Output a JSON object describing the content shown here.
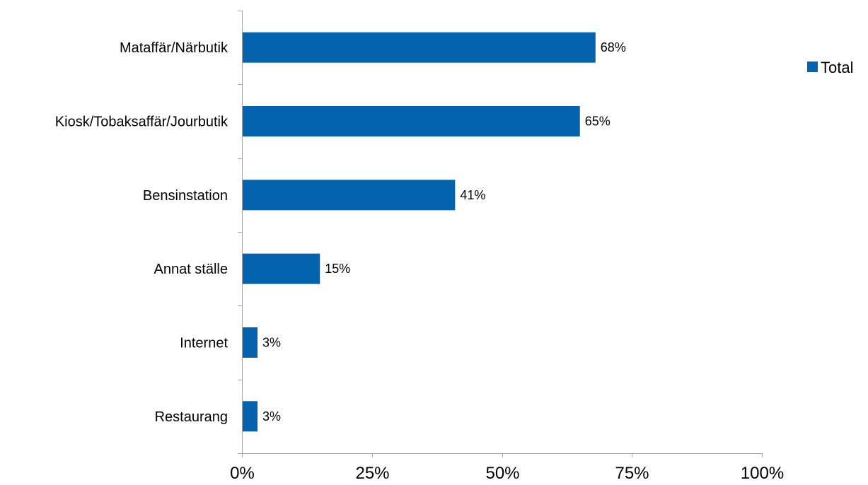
{
  "chart_data": {
    "type": "bar",
    "orientation": "horizontal",
    "categories": [
      "Mataffär/Närbutik",
      "Kiosk/Tobaksaffär/Jourbutik",
      "Bensinstation",
      "Annat ställe",
      "Internet",
      "Restaurang"
    ],
    "series": [
      {
        "name": "Total",
        "values": [
          0.68,
          0.65,
          0.41,
          0.15,
          0.03,
          0.03
        ],
        "labels": [
          "68%",
          "65%",
          "41%",
          "15%",
          "3%",
          "3%"
        ],
        "color": "#0563AD"
      }
    ],
    "xlim": [
      0,
      1
    ],
    "xticks": [
      0,
      0.25,
      0.5,
      0.75,
      1
    ],
    "xtick_labels": [
      "0%",
      "25%",
      "50%",
      "75%",
      "100%"
    ],
    "grid": false,
    "legend_position": "top-right"
  }
}
